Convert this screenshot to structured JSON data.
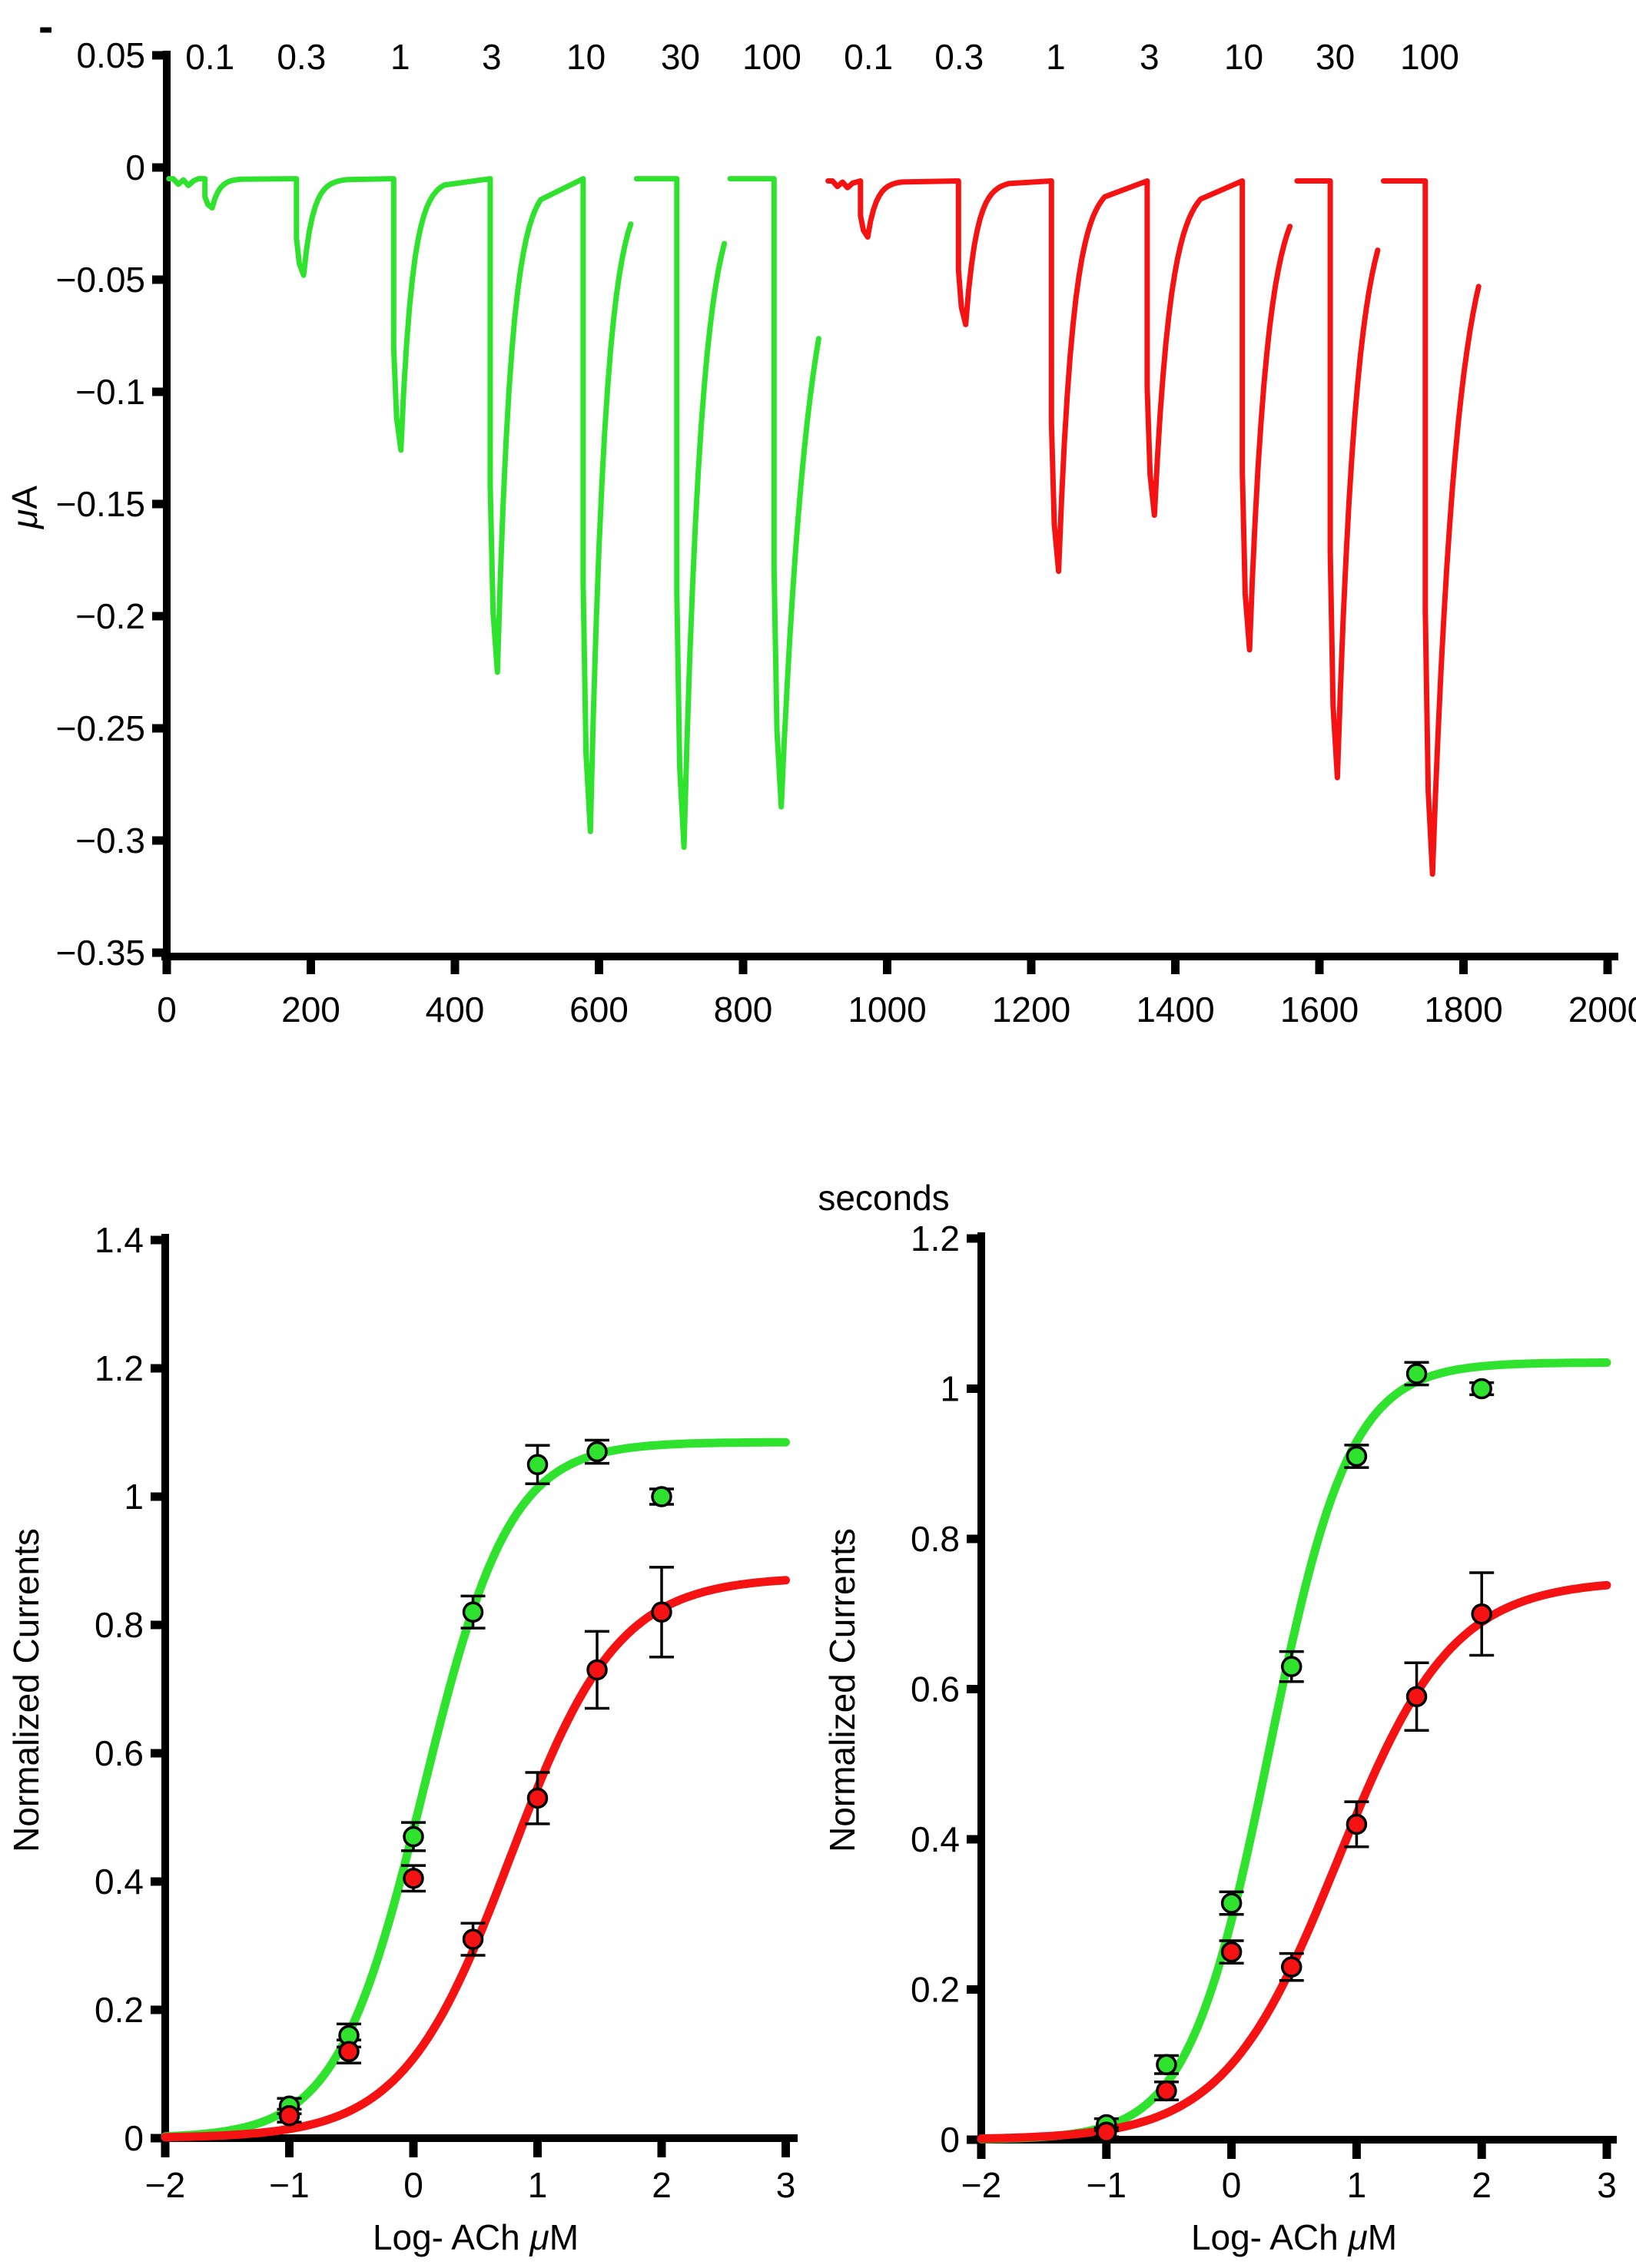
{
  "figure": {
    "stray_mark": "-",
    "colors": {
      "green": "#2EE22E",
      "red": "#F51212",
      "axis": "#000000",
      "background": "#FFFFFF"
    }
  },
  "chart_data": [
    {
      "id": "current-traces",
      "type": "line",
      "title": "",
      "xlabel": "seconds",
      "ylabel": "μA",
      "xlim": [
        0,
        2000
      ],
      "ylim": [
        -0.35,
        0.05
      ],
      "grid": false,
      "xticks": [
        0,
        200,
        400,
        600,
        800,
        1000,
        1200,
        1400,
        1600,
        1800,
        2000
      ],
      "xtick_labels": [
        "0",
        "200",
        "400",
        "600",
        "800",
        "1000",
        "1200",
        "1400",
        "1600",
        "1800",
        "2000"
      ],
      "yticks": [
        0.05,
        0,
        -0.05,
        -0.1,
        -0.15,
        -0.2,
        -0.25,
        -0.3,
        -0.35
      ],
      "ytick_labels": [
        "0.05",
        "0",
        "−0.05",
        "−0.1",
        "−0.15",
        "−0.2",
        "−0.25",
        "−0.3",
        "−0.35"
      ],
      "series": [
        {
          "name": "trace-green",
          "color_key": "green",
          "baseline": -0.005,
          "start": 3,
          "end": 905,
          "noisy_start": true,
          "concentration_labels": [
            "0.1",
            "0.3",
            "1",
            "3",
            "10",
            "30",
            "100"
          ],
          "label_times": [
            60,
            187,
            324,
            451,
            582,
            713,
            840
          ],
          "pulses": [
            {
              "t": 63,
              "depth": -0.018,
              "tau": 10,
              "rec": 42,
              "gap": false
            },
            {
              "t": 190,
              "depth": -0.048,
              "tau": 13,
              "rec": 60,
              "gap": false
            },
            {
              "t": 325,
              "depth": -0.126,
              "tau": 16,
              "rec": 62,
              "gap": false
            },
            {
              "t": 459,
              "depth": -0.225,
              "tau": 19,
              "rec": 60,
              "gap": false
            },
            {
              "t": 588,
              "depth": -0.296,
              "tau": 21,
              "rec": 56,
              "gap": true
            },
            {
              "t": 718,
              "depth": -0.303,
              "tau": 24,
              "rec": 56,
              "gap": true
            },
            {
              "t": 853,
              "depth": -0.285,
              "tau": 38,
              "rec": 52,
              "gap": true
            }
          ]
        },
        {
          "name": "trace-red",
          "color_key": "red",
          "baseline": -0.006,
          "start": 918,
          "end": 1823,
          "noisy_start": true,
          "concentration_labels": [
            "0.1",
            "0.3",
            "1",
            "3",
            "10",
            "30",
            "100"
          ],
          "label_times": [
            974,
            1100,
            1234,
            1364,
            1495,
            1622,
            1753
          ],
          "pulses": [
            {
              "t": 973,
              "depth": -0.031,
              "tau": 12,
              "rec": 50,
              "gap": false
            },
            {
              "t": 1109,
              "depth": -0.07,
              "tau": 15,
              "rec": 62,
              "gap": false
            },
            {
              "t": 1238,
              "depth": -0.18,
              "tau": 20,
              "rec": 66,
              "gap": false
            },
            {
              "t": 1371,
              "depth": -0.155,
              "tau": 22,
              "rec": 64,
              "gap": false
            },
            {
              "t": 1503,
              "depth": -0.215,
              "tau": 24,
              "rec": 58,
              "gap": true
            },
            {
              "t": 1625,
              "depth": -0.272,
              "tau": 26,
              "rec": 56,
              "gap": true
            },
            {
              "t": 1757,
              "depth": -0.315,
              "tau": 34,
              "rec": 66,
              "gap": true
            }
          ]
        }
      ]
    },
    {
      "id": "dose-response-left",
      "type": "scatter",
      "title": "",
      "xlabel": "Log-  ACh μM",
      "ylabel": "Normalized Currents",
      "xlim": [
        -2,
        3
      ],
      "ylim": [
        0,
        1.4
      ],
      "grid": false,
      "xticks": [
        -2,
        -1,
        0,
        1,
        2,
        3
      ],
      "xtick_labels": [
        "−2",
        "−1",
        "0",
        "1",
        "2",
        "3"
      ],
      "yticks": [
        0,
        0.2,
        0.4,
        0.6,
        0.8,
        1,
        1.2,
        1.4
      ],
      "ytick_labels": [
        "0",
        "0.2",
        "0.4",
        "0.6",
        "0.8",
        "1",
        "1.2",
        "1.4"
      ],
      "x": [
        -1,
        -0.52,
        0,
        0.48,
        1,
        1.48,
        2
      ],
      "series": [
        {
          "name": "green-oocyte",
          "color_key": "green",
          "values": [
            0.05,
            0.16,
            0.47,
            0.82,
            1.05,
            1.07,
            1.0
          ],
          "errors": [
            0.012,
            0.018,
            0.022,
            0.025,
            0.03,
            0.018,
            0.012
          ],
          "fit": {
            "bottom": 0,
            "top": 1.085,
            "logec50": 0.08,
            "hill": 1.25
          }
        },
        {
          "name": "red-oocyte",
          "color_key": "red",
          "values": [
            0.035,
            0.135,
            0.405,
            0.31,
            0.53,
            0.73,
            0.82
          ],
          "errors": [
            0.01,
            0.018,
            0.02,
            0.025,
            0.04,
            0.06,
            0.07
          ],
          "fit": {
            "bottom": 0,
            "top": 0.875,
            "logec50": 0.78,
            "hill": 1.0
          }
        }
      ]
    },
    {
      "id": "dose-response-right",
      "type": "scatter",
      "title": "",
      "xlabel": "Log-  ACh μM",
      "ylabel": "Normalized Currents",
      "xlim": [
        -2,
        3
      ],
      "ylim": [
        0,
        1.2
      ],
      "grid": false,
      "xticks": [
        -2,
        -1,
        0,
        1,
        2,
        3
      ],
      "xtick_labels": [
        "−2",
        "−1",
        "0",
        "1",
        "2",
        "3"
      ],
      "yticks": [
        0,
        0.2,
        0.4,
        0.6,
        0.8,
        1,
        1.2
      ],
      "ytick_labels": [
        "0",
        "0.2",
        "0.4",
        "0.6",
        "0.8",
        "1",
        "1.2"
      ],
      "x": [
        -1,
        -0.52,
        0,
        0.48,
        1,
        1.48,
        2
      ],
      "series": [
        {
          "name": "green-oocyte",
          "color_key": "green",
          "values": [
            0.02,
            0.1,
            0.315,
            0.63,
            0.91,
            1.02,
            1.0
          ],
          "errors": [
            0.008,
            0.012,
            0.015,
            0.02,
            0.015,
            0.015,
            0.008
          ],
          "fit": {
            "bottom": 0,
            "top": 1.035,
            "logec50": 0.3,
            "hill": 1.35
          }
        },
        {
          "name": "red-oocyte",
          "color_key": "red",
          "values": [
            0.01,
            0.065,
            0.25,
            0.23,
            0.42,
            0.59,
            0.7
          ],
          "errors": [
            0.006,
            0.012,
            0.015,
            0.018,
            0.03,
            0.045,
            0.055
          ],
          "fit": {
            "bottom": 0,
            "top": 0.745,
            "logec50": 0.85,
            "hill": 0.95
          }
        }
      ]
    }
  ]
}
